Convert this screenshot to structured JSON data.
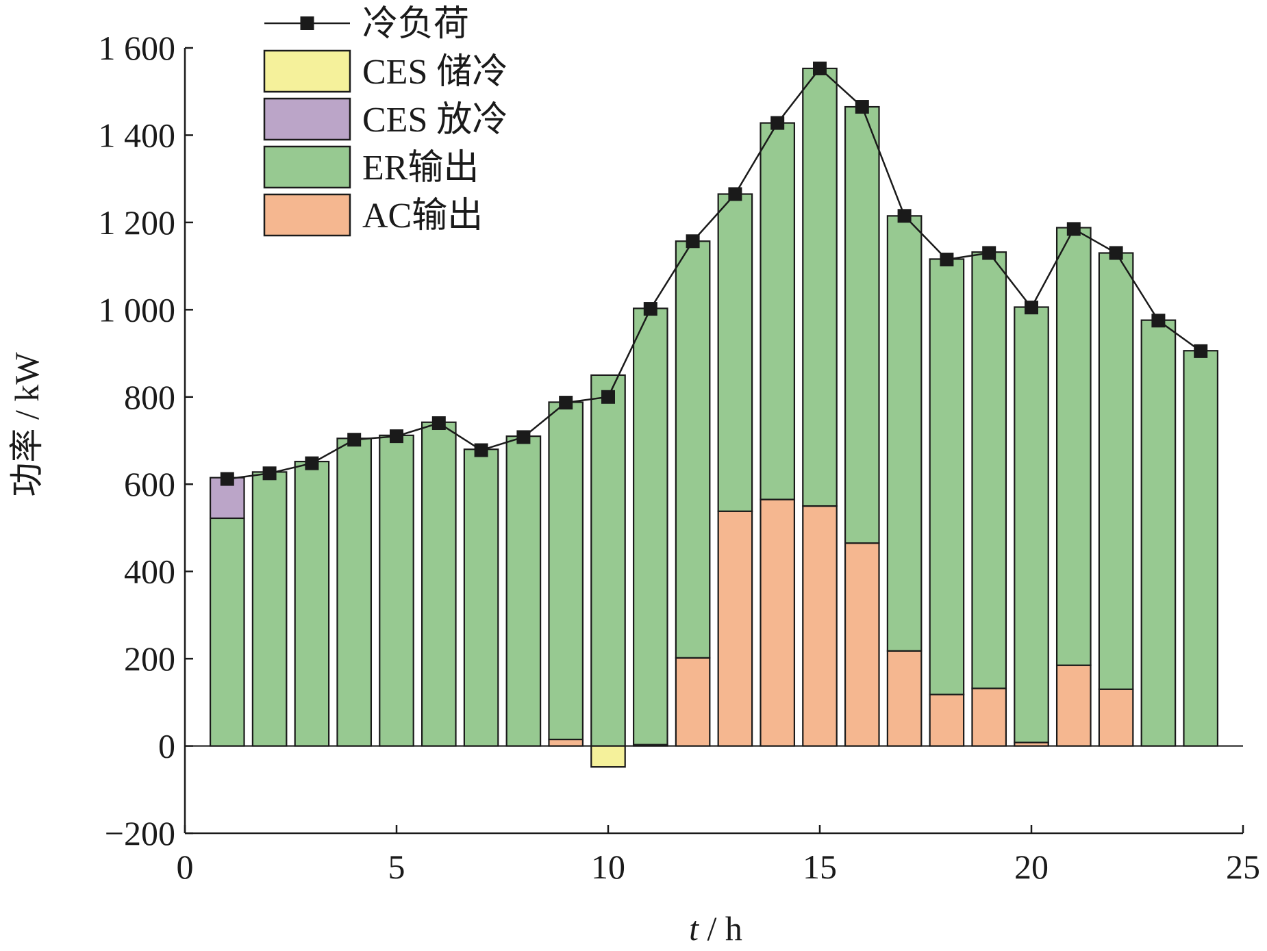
{
  "chart_data": {
    "type": "bar",
    "stacked": true,
    "xlabel_italic": "t",
    "xlabel_rest": " / h",
    "ylabel": "功率 / kW",
    "xlim": [
      0,
      25
    ],
    "ylim": [
      -200,
      1600
    ],
    "x_ticks": [
      0,
      5,
      10,
      15,
      20,
      25
    ],
    "y_ticks": [
      -200,
      0,
      200,
      400,
      600,
      800,
      1000,
      1200,
      1400,
      1600
    ],
    "y_tick_labels": [
      "−200",
      "0",
      "200",
      "400",
      "600",
      "800",
      "1 000",
      "1 200",
      "1 400",
      "1 600"
    ],
    "grid": false,
    "legend_position": "top-left",
    "x": [
      1,
      2,
      3,
      4,
      5,
      6,
      7,
      8,
      9,
      10,
      11,
      12,
      13,
      14,
      15,
      16,
      17,
      18,
      19,
      20,
      21,
      22,
      23,
      24
    ],
    "series": [
      {
        "name": "AC输出",
        "kind": "bar",
        "color": "#f5b790",
        "values": [
          0,
          0,
          0,
          0,
          0,
          0,
          0,
          0,
          15,
          0,
          3,
          202,
          538,
          565,
          550,
          465,
          218,
          118,
          132,
          8,
          185,
          130,
          0,
          0
        ]
      },
      {
        "name": "ER输出",
        "kind": "bar",
        "color": "#97c991",
        "values": [
          522,
          628,
          652,
          705,
          712,
          742,
          680,
          710,
          773,
          850,
          1000,
          955,
          727,
          863,
          1003,
          1000,
          997,
          998,
          1000,
          998,
          1003,
          1000,
          976,
          906
        ]
      },
      {
        "name": "CES 放冷",
        "kind": "bar",
        "color": "#bba5c8",
        "values": [
          93,
          0,
          0,
          0,
          0,
          0,
          0,
          0,
          0,
          0,
          0,
          0,
          0,
          0,
          0,
          0,
          0,
          0,
          0,
          0,
          0,
          0,
          0,
          0
        ]
      },
      {
        "name": "CES 储冷",
        "kind": "bar",
        "color": "#f5f19b",
        "values": [
          0,
          0,
          0,
          0,
          0,
          0,
          0,
          0,
          0,
          -48,
          0,
          0,
          0,
          0,
          0,
          0,
          0,
          0,
          0,
          0,
          0,
          0,
          0,
          0
        ]
      },
      {
        "name": "冷负荷",
        "kind": "line",
        "color": "#1a1a1a",
        "values": [
          612,
          625,
          648,
          702,
          710,
          740,
          678,
          708,
          787,
          800,
          1002,
          1157,
          1265,
          1428,
          1553,
          1465,
          1215,
          1115,
          1130,
          1005,
          1185,
          1130,
          975,
          905
        ]
      }
    ],
    "legend_order": [
      "冷负荷",
      "CES 储冷",
      "CES 放冷",
      "ER输出",
      "AC输出"
    ]
  }
}
